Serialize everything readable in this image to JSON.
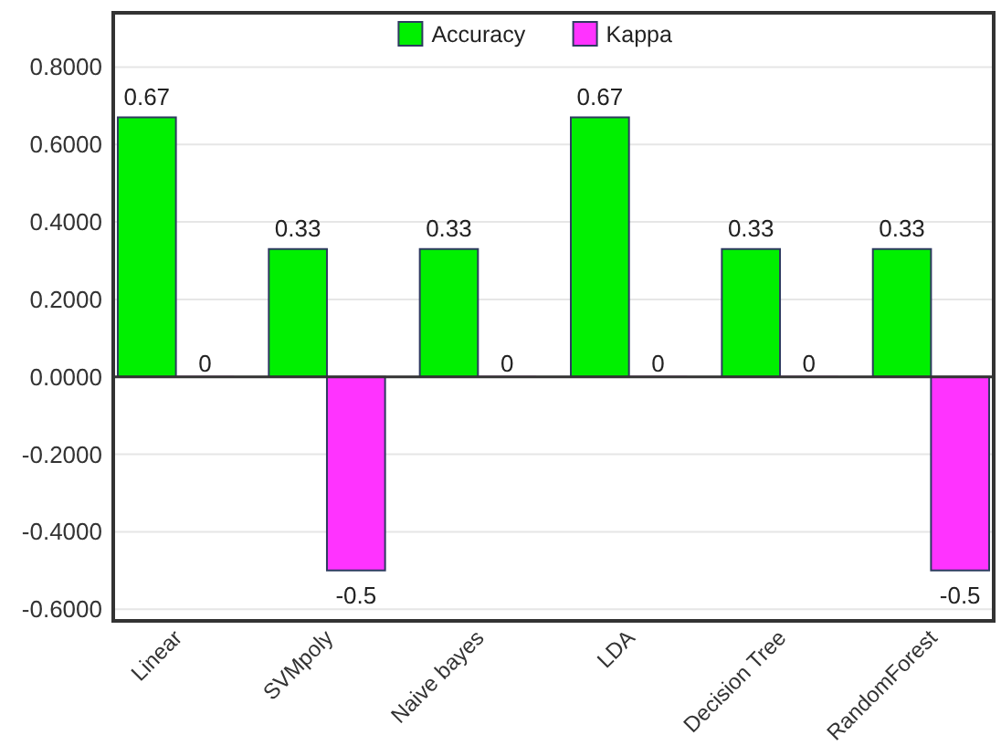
{
  "chart_data": {
    "type": "bar",
    "categories": [
      "Linear",
      "SVMpoly",
      "Naive bayes",
      "LDA",
      "Decision Tree",
      "RandomForest"
    ],
    "series": [
      {
        "name": "Accuracy",
        "color": "#00f000",
        "values": [
          0.67,
          0.33,
          0.33,
          0.67,
          0.33,
          0.33
        ]
      },
      {
        "name": "Kappa",
        "color": "#ff33ff",
        "values": [
          0,
          -0.5,
          0,
          0,
          0,
          -0.5
        ]
      }
    ],
    "ylim": [
      -0.63,
      0.94
    ],
    "yticks": [
      {
        "value": -0.6,
        "label": "-0.6000"
      },
      {
        "value": -0.4,
        "label": "-0.4000"
      },
      {
        "value": -0.2,
        "label": "-0.2000"
      },
      {
        "value": 0,
        "label": "0.0000"
      },
      {
        "value": 0.2,
        "label": "0.2000"
      },
      {
        "value": 0.4,
        "label": "0.4000"
      },
      {
        "value": 0.6,
        "label": "0.6000"
      },
      {
        "value": 0.8,
        "label": "0.8000"
      }
    ],
    "grid": "y",
    "legend": "top",
    "data_labels": true
  }
}
